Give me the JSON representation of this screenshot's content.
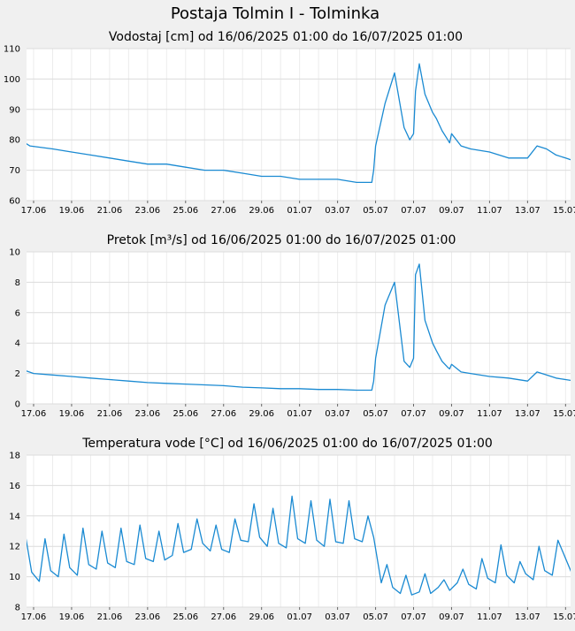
{
  "page_title": "Postaja Tolmin I - Tolminka",
  "colors": {
    "line": "#1a8ad2",
    "grid": "#dcdcdc",
    "plot_bg": "#ffffff",
    "page_bg": "#f0f0f0"
  },
  "chart_data": [
    {
      "type": "line",
      "title": "Vodostaj [cm] od 16/06/2025 01:00 do 16/07/2025 01:00",
      "xlabel": "",
      "ylabel": "",
      "x_ticks": [
        "17.06",
        "19.06",
        "21.06",
        "23.06",
        "25.06",
        "27.06",
        "29.06",
        "01.07",
        "03.07",
        "05.07",
        "07.07",
        "09.07",
        "11.07",
        "13.07",
        "15.07"
      ],
      "y_ticks": [
        60,
        70,
        80,
        90,
        100,
        110
      ],
      "ylim": [
        60,
        110
      ],
      "grid": true,
      "series": [
        {
          "x": [
            0,
            0.3,
            0.8,
            2,
            3,
            4,
            5,
            6,
            7,
            8,
            9,
            10,
            11,
            12,
            13,
            14,
            15,
            16,
            17,
            18,
            18.5,
            18.8,
            18.9,
            19,
            19.5,
            20,
            20.5,
            20.8,
            21,
            21.1,
            21.3,
            21.6,
            22,
            22.2,
            22.5,
            22.8,
            22.9,
            23,
            23.5,
            24,
            25,
            26,
            27,
            27.5,
            28,
            28.5,
            29,
            29.5,
            30
          ],
          "y": [
            79,
            80,
            78,
            77,
            76,
            75,
            74,
            73,
            72,
            72,
            71,
            70,
            70,
            69,
            68,
            68,
            67,
            67,
            67,
            66,
            66,
            66,
            70,
            78,
            92,
            102,
            84,
            80,
            82,
            96,
            105,
            95,
            89,
            87,
            83,
            80,
            79,
            82,
            78,
            77,
            76,
            74,
            74,
            78,
            77,
            75,
            74,
            73,
            73
          ]
        }
      ]
    },
    {
      "type": "line",
      "title": "Pretok [m³/s] od 16/06/2025 01:00 do 16/07/2025 01:00",
      "xlabel": "",
      "ylabel": "",
      "x_ticks": [
        "17.06",
        "19.06",
        "21.06",
        "23.06",
        "25.06",
        "27.06",
        "29.06",
        "01.07",
        "03.07",
        "05.07",
        "07.07",
        "09.07",
        "11.07",
        "13.07",
        "15.07"
      ],
      "y_ticks": [
        0,
        2,
        4,
        6,
        8,
        10
      ],
      "ylim": [
        0,
        10
      ],
      "grid": true,
      "series": [
        {
          "x": [
            0,
            0.3,
            1,
            2,
            3,
            4,
            5,
            6,
            7,
            8,
            9,
            10,
            11,
            12,
            13,
            14,
            15,
            16,
            17,
            18,
            18.5,
            18.8,
            18.9,
            19,
            19.5,
            20,
            20.5,
            20.8,
            21,
            21.1,
            21.3,
            21.6,
            22,
            22.2,
            22.5,
            22.8,
            22.9,
            23,
            23.5,
            24,
            25,
            26,
            27,
            27.5,
            28,
            28.5,
            29,
            29.5,
            30
          ],
          "y": [
            2.1,
            2.3,
            2.0,
            1.9,
            1.8,
            1.7,
            1.6,
            1.5,
            1.4,
            1.35,
            1.3,
            1.25,
            1.2,
            1.1,
            1.05,
            1.0,
            1.0,
            0.95,
            0.95,
            0.9,
            0.9,
            0.9,
            1.5,
            3.0,
            6.5,
            8.0,
            2.8,
            2.4,
            3.0,
            8.5,
            9.2,
            5.5,
            4.0,
            3.5,
            2.8,
            2.4,
            2.3,
            2.6,
            2.1,
            2.0,
            1.8,
            1.7,
            1.5,
            2.1,
            1.9,
            1.7,
            1.6,
            1.5,
            1.45
          ]
        }
      ]
    },
    {
      "type": "line",
      "title": "Temperatura vode [°C] od 16/06/2025 01:00 do 16/07/2025 01:00",
      "xlabel": "",
      "ylabel": "",
      "x_ticks": [
        "17.06",
        "19.06",
        "21.06",
        "23.06",
        "25.06",
        "27.06",
        "29.06",
        "01.07",
        "03.07",
        "05.07",
        "07.07",
        "09.07",
        "11.07",
        "13.07",
        "15.07"
      ],
      "y_ticks": [
        8,
        10,
        12,
        14,
        16,
        18
      ],
      "ylim": [
        8,
        18
      ],
      "grid": true,
      "series": [
        {
          "x": [
            0,
            0.3,
            0.6,
            0.9,
            1.3,
            1.6,
            1.9,
            2.3,
            2.6,
            2.9,
            3.3,
            3.6,
            3.9,
            4.3,
            4.6,
            4.9,
            5.3,
            5.6,
            5.9,
            6.3,
            6.6,
            6.9,
            7.3,
            7.6,
            7.9,
            8.3,
            8.6,
            8.9,
            9.3,
            9.6,
            9.9,
            10.3,
            10.6,
            10.9,
            11.3,
            11.6,
            11.9,
            12.3,
            12.6,
            12.9,
            13.3,
            13.6,
            13.9,
            14.3,
            14.6,
            14.9,
            15.3,
            15.6,
            15.9,
            16.3,
            16.6,
            16.9,
            17.3,
            17.6,
            17.9,
            18.3,
            18.6,
            18.9,
            19.3,
            19.6,
            19.9,
            20.3,
            20.6,
            20.9,
            21.3,
            21.6,
            21.9,
            22.3,
            22.6,
            22.9,
            23.3,
            23.6,
            23.9,
            24.3,
            24.6,
            24.9,
            25.3,
            25.6,
            25.9,
            26.3,
            26.6,
            26.9,
            27.3,
            27.6,
            27.9,
            28.3,
            28.6,
            28.9,
            29.3,
            29.6,
            30
          ],
          "y": [
            10.7,
            10.4,
            12.5,
            10.3,
            9.7,
            12.5,
            10.4,
            10.0,
            12.8,
            10.6,
            10.1,
            13.2,
            10.8,
            10.5,
            13.0,
            10.9,
            10.6,
            13.2,
            11.0,
            10.8,
            13.4,
            11.2,
            11.0,
            13.0,
            11.1,
            11.4,
            13.5,
            11.6,
            11.8,
            13.8,
            12.2,
            11.7,
            13.4,
            11.8,
            11.6,
            13.8,
            12.4,
            12.3,
            14.8,
            12.6,
            12.0,
            14.5,
            12.2,
            11.9,
            15.3,
            12.5,
            12.2,
            15.0,
            12.4,
            12.0,
            15.1,
            12.3,
            12.2,
            15.0,
            12.5,
            12.3,
            14.0,
            12.6,
            9.6,
            10.8,
            9.3,
            8.9,
            10.1,
            8.8,
            9.0,
            10.2,
            8.9,
            9.3,
            9.8,
            9.1,
            9.6,
            10.5,
            9.5,
            9.2,
            11.2,
            9.9,
            9.6,
            12.1,
            10.1,
            9.6,
            11.0,
            10.2,
            9.8,
            12.0,
            10.4,
            10.1,
            12.4,
            11.5,
            10.3,
            12.9,
            11.0
          ]
        }
      ]
    }
  ]
}
